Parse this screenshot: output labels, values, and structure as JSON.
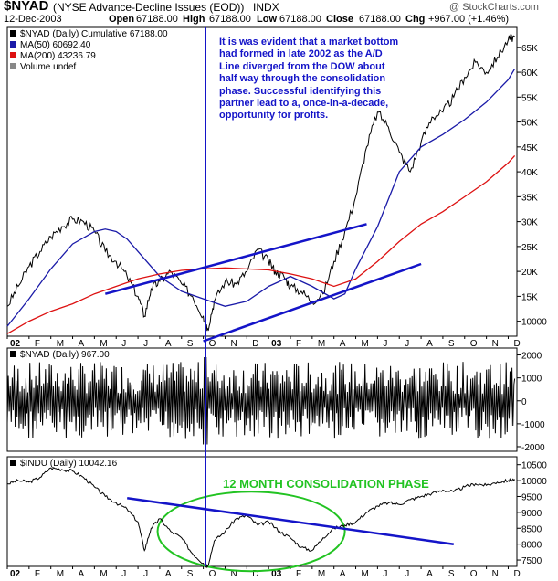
{
  "header": {
    "symbol": "$NYAD",
    "description": "(NYSE Advance-Decline Issues (EOD))",
    "exchange": "INDX",
    "watermark": "@ StockCharts.com",
    "date": "12-Dec-2003",
    "open_label": "Open",
    "open": "67188.00",
    "high_label": "High",
    "high": "67188.00",
    "low_label": "Low",
    "low": "67188.00",
    "close_label": "Close",
    "close": "67188.00",
    "chg_label": "Chg",
    "chg": "+967.00 (+1.46%)"
  },
  "annotations": {
    "ad_line_note": "It is was evident that a market bottom had formed in late 2002 as the A/D Line diverged from the DOW about half way through the consolidation phase.  Successful identifying this partner lead to a, once-in-a-decade, opportunity for profits.",
    "consolidation_label": "12 MONTH CONSOLIDATION PHASE"
  },
  "colors": {
    "price": "#000000",
    "ma50": "#1a1aa8",
    "ma200": "#dd1111",
    "trendline": "#1414c8",
    "ellipse": "#22c322"
  },
  "chart_data": [
    {
      "type": "line",
      "panel": "main",
      "legend": [
        {
          "text": "$NYAD (Daily) Cumulative 67188.00",
          "color": "#000000"
        },
        {
          "text": "MA(50) 60692.40",
          "color": "#1a1aa8"
        },
        {
          "text": "MA(200) 43236.79",
          "color": "#dd1111"
        },
        {
          "text": "Volume undef",
          "color": "#888888"
        }
      ],
      "x_labels": [
        "02",
        "F",
        "M",
        "A",
        "M",
        "J",
        "J",
        "A",
        "S",
        "O",
        "N",
        "D",
        "03",
        "F",
        "M",
        "A",
        "M",
        "J",
        "J",
        "A",
        "S",
        "O",
        "N",
        "D"
      ],
      "y_ticks": [
        10000,
        15000,
        20000,
        25000,
        30000,
        35000,
        40000,
        45000,
        50000,
        55000,
        60000,
        65000
      ],
      "y_tick_labels": [
        "10000",
        "15K",
        "20K",
        "25K",
        "30K",
        "35K",
        "40K",
        "45K",
        "50K",
        "55K",
        "60K",
        "65K"
      ],
      "ylim": [
        7000,
        69000
      ],
      "x_month_index_range": [
        0,
        23.4
      ],
      "series": [
        {
          "name": "$NYAD (Daily) Cumulative",
          "key": "price",
          "x": [
            0,
            0.5,
            1,
            1.5,
            2,
            2.5,
            3,
            3.5,
            4,
            4.5,
            5,
            5.5,
            6,
            6.3,
            6.6,
            7,
            7.5,
            8,
            8.5,
            9,
            9.2,
            9.5,
            10,
            10.5,
            11,
            11.5,
            12,
            12.3,
            12.7,
            13,
            13.5,
            14,
            14.5,
            15,
            15.5,
            16,
            16.5,
            17,
            17.5,
            18,
            18.5,
            19,
            19.5,
            20,
            20.5,
            21,
            21.5,
            22,
            22.5,
            23,
            23.3
          ],
          "values": [
            13000,
            17000,
            21000,
            24000,
            27000,
            29000,
            30500,
            30000,
            28000,
            24000,
            22000,
            19000,
            15000,
            11000,
            16500,
            18000,
            20000,
            17500,
            15000,
            11000,
            8500,
            14000,
            18000,
            17500,
            20000,
            24500,
            22000,
            20000,
            19000,
            17000,
            16000,
            14000,
            15500,
            22000,
            28000,
            35000,
            45000,
            52000,
            49000,
            44000,
            40000,
            46000,
            51000,
            52000,
            55000,
            59000,
            62000,
            60000,
            63000,
            66500,
            67188
          ]
        },
        {
          "name": "MA(50)",
          "key": "ma50",
          "x": [
            0,
            1,
            2,
            3,
            4,
            4.5,
            5,
            5.5,
            6,
            7,
            8,
            9,
            10,
            11,
            12,
            13,
            14,
            15,
            15.5,
            16,
            17,
            18,
            19,
            20,
            21,
            22,
            23,
            23.3
          ],
          "values": [
            9000,
            14500,
            20500,
            25500,
            28000,
            28500,
            28000,
            26500,
            24000,
            19000,
            16000,
            14500,
            13000,
            14000,
            17000,
            19000,
            17000,
            14500,
            15500,
            20500,
            29000,
            40000,
            45000,
            47500,
            50500,
            54000,
            58500,
            60692
          ]
        },
        {
          "name": "MA(200)",
          "key": "ma200",
          "x": [
            0,
            1,
            2,
            3,
            4,
            5,
            6,
            7,
            8,
            9,
            10,
            11,
            12,
            13,
            14,
            15,
            16,
            17,
            18,
            19,
            20,
            21,
            22,
            23,
            23.3
          ],
          "values": [
            7500,
            10000,
            12000,
            13500,
            15500,
            17000,
            18500,
            19500,
            20200,
            20500,
            20700,
            20500,
            20300,
            19500,
            18500,
            17000,
            18500,
            22000,
            26000,
            29500,
            32000,
            35000,
            38000,
            41800,
            43237
          ]
        },
        {
          "name": "trendline-upper",
          "key": "trendline",
          "x": [
            4.5,
            16.5
          ],
          "values": [
            15500,
            29500
          ]
        },
        {
          "name": "trendline-lower",
          "key": "trendline",
          "x": [
            9,
            19
          ],
          "values": [
            6000,
            21500
          ]
        }
      ],
      "vertical_marker_x": 9.1,
      "grid": false
    },
    {
      "type": "line",
      "panel": "daily",
      "legend": [
        {
          "text": "$NYAD (Daily) 967.00",
          "color": "#000000"
        }
      ],
      "y_ticks": [
        2000,
        1000,
        0,
        -1000,
        -2000
      ],
      "y_tick_labels": [
        "2000",
        "1000",
        "0",
        "-1000",
        "-2000"
      ],
      "ylim": [
        -2200,
        2300
      ],
      "x_month_index_range": [
        0,
        23.4
      ],
      "series": [
        {
          "name": "$NYAD (Daily)",
          "key": "price",
          "oscillation": [
            -1900,
            1900
          ],
          "last": 967
        }
      ],
      "grid": false
    },
    {
      "type": "line",
      "panel": "dow",
      "legend": [
        {
          "text": "$INDU (Daily) 10042.16",
          "color": "#000000"
        }
      ],
      "x_labels": [
        "02",
        "F",
        "M",
        "A",
        "M",
        "J",
        "J",
        "A",
        "S",
        "O",
        "N",
        "D",
        "03",
        "F",
        "M",
        "A",
        "M",
        "J",
        "J",
        "A",
        "S",
        "O",
        "N",
        "D"
      ],
      "y_ticks": [
        7500,
        8000,
        8500,
        9000,
        9500,
        10000,
        10500
      ],
      "y_tick_labels": [
        "7500",
        "8000",
        "8500",
        "9000",
        "9500",
        "10000",
        "10500"
      ],
      "ylim": [
        7300,
        10750
      ],
      "x_month_index_range": [
        0,
        23.4
      ],
      "series": [
        {
          "name": "$INDU (Daily)",
          "key": "price",
          "x": [
            0,
            0.5,
            1,
            1.5,
            2,
            2.5,
            3,
            3.5,
            4,
            4.5,
            5,
            5.5,
            6,
            6.3,
            6.6,
            7,
            7.5,
            8,
            8.5,
            9,
            9.2,
            9.5,
            10,
            10.5,
            11,
            11.5,
            12,
            12.5,
            13,
            13.5,
            14,
            14.5,
            15,
            15.5,
            16,
            16.5,
            17,
            17.5,
            18,
            18.5,
            19,
            19.5,
            20,
            20.5,
            21,
            21.5,
            22,
            22.5,
            23,
            23.3
          ],
          "values": [
            9900,
            10000,
            9950,
            10100,
            10400,
            10350,
            10300,
            10100,
            9800,
            9500,
            9300,
            9100,
            8700,
            7800,
            8500,
            8800,
            8400,
            8200,
            7700,
            7400,
            7300,
            8100,
            8400,
            8800,
            8900,
            8600,
            8700,
            8400,
            8200,
            7900,
            7800,
            8200,
            8500,
            8600,
            8700,
            9000,
            9200,
            9300,
            9250,
            9400,
            9500,
            9600,
            9700,
            9650,
            9800,
            9900,
            9850,
            9950,
            10000,
            10042
          ]
        },
        {
          "name": "trendline",
          "key": "trendline",
          "x": [
            5.5,
            20.5
          ],
          "values": [
            9450,
            8000
          ]
        }
      ],
      "vertical_marker_x": 9.1,
      "ellipse": {
        "cx": 11.2,
        "cy": 8400,
        "rx": 4.3,
        "ry": 1250
      },
      "grid": false
    }
  ]
}
